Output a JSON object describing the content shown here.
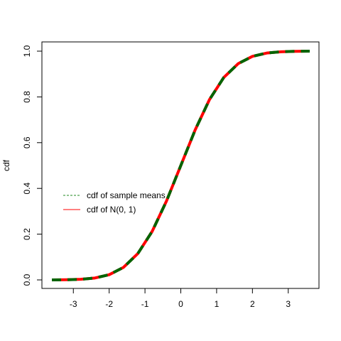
{
  "chart_data": {
    "type": "line",
    "title": "",
    "xlabel": "",
    "ylabel": "cdf",
    "xlim": [
      -3.6,
      3.6
    ],
    "ylim": [
      0,
      1
    ],
    "x_ticks": [
      -3,
      -2,
      -1,
      0,
      1,
      2,
      3
    ],
    "x_tick_labels": [
      "-3",
      "-2",
      "-1",
      "0",
      "1",
      "2",
      "3"
    ],
    "y_ticks": [
      0,
      0.2,
      0.4,
      0.6,
      0.8,
      1.0
    ],
    "y_tick_labels": [
      "0.0",
      "0.2",
      "0.4",
      "0.6",
      "0.8",
      "1.0"
    ],
    "grid": false,
    "legend_placement": "left",
    "x": [
      -3.6,
      -3.2,
      -2.8,
      -2.4,
      -2.0,
      -1.6,
      -1.2,
      -0.8,
      -0.4,
      0.0,
      0.4,
      0.8,
      1.2,
      1.6,
      2.0,
      2.4,
      2.8,
      3.2,
      3.6
    ],
    "series": [
      {
        "name": "cdf of N(0, 1)",
        "color": "#ff0000",
        "line_style": "solid",
        "values": [
          0.0002,
          0.0007,
          0.0026,
          0.0082,
          0.0228,
          0.0548,
          0.1151,
          0.2119,
          0.3446,
          0.5,
          0.6554,
          0.7881,
          0.8849,
          0.9452,
          0.9772,
          0.9918,
          0.9974,
          0.9993,
          0.9998
        ]
      },
      {
        "name": "cdf of sample means",
        "color": "#006400",
        "line_style": "dashed",
        "values": [
          0.0002,
          0.0007,
          0.0026,
          0.0082,
          0.0228,
          0.0548,
          0.1151,
          0.2119,
          0.3446,
          0.5,
          0.6554,
          0.7881,
          0.8849,
          0.9452,
          0.9772,
          0.9918,
          0.9974,
          0.9993,
          0.9998
        ]
      }
    ],
    "legend": [
      {
        "label": "cdf of sample means",
        "color": "#228b22",
        "line_style": "dashed"
      },
      {
        "label": "cdf of N(0, 1)",
        "color": "#ff0000",
        "line_style": "solid"
      }
    ]
  }
}
